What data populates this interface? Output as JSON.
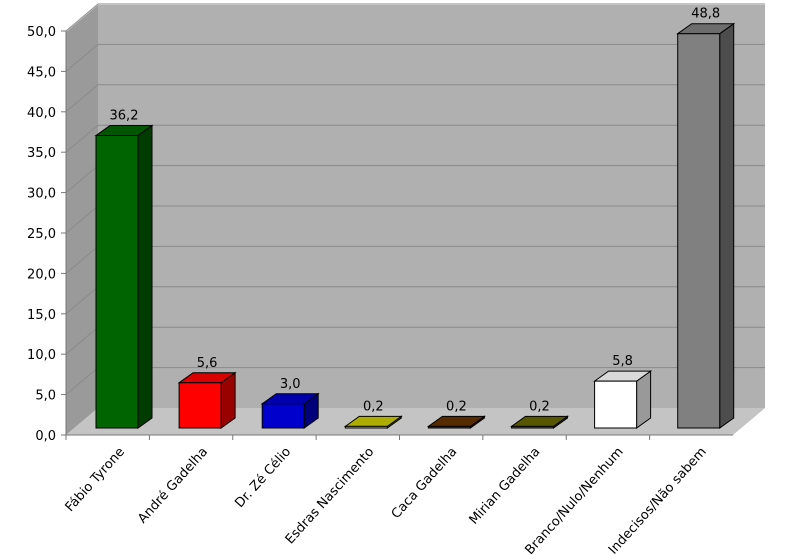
{
  "chart_data": {
    "type": "bar",
    "title": "",
    "xlabel": "",
    "ylabel": "",
    "categories": [
      "Fábio Tyrone",
      "André Gadelha",
      "Dr. Zé Célio",
      "Esdras Nascimento",
      "Caca Gadelha",
      "Mirian Gadelha",
      "Branco/Nulo/Nenhum",
      "Indecisos/Não sabem"
    ],
    "values": [
      36.2,
      5.6,
      3.0,
      0.2,
      0.2,
      0.2,
      5.8,
      48.8
    ],
    "data_labels": [
      "36,2",
      "5,6",
      "3,0",
      "0,2",
      "0,2",
      "0,2",
      "5,8",
      "48,8"
    ],
    "colors": [
      "#006400",
      "#ff0000",
      "#0000cc",
      "#cccc00",
      "#663300",
      "#666600",
      "#ffffff",
      "#808080"
    ],
    "ylim": [
      0,
      50
    ],
    "yticks": [
      "0,0",
      "5,0",
      "10,0",
      "15,0",
      "20,0",
      "25,0",
      "30,0",
      "35,0",
      "40,0",
      "45,0",
      "50,0"
    ],
    "grid": true,
    "style": "3d-column",
    "legend": "none"
  }
}
